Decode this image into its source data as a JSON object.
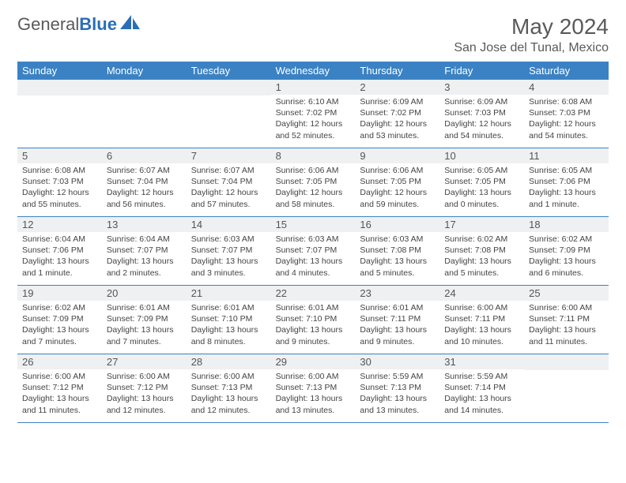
{
  "brand": {
    "word1": "General",
    "word2": "Blue"
  },
  "title": "May 2024",
  "location": "San Jose del Tunal, Mexico",
  "colors": {
    "header_bg": "#3b82c4",
    "header_text": "#ffffff",
    "daynum_bg": "#eef0f2",
    "border": "#3b82c4",
    "body_text": "#444444",
    "title_text": "#5a5a5a"
  },
  "day_names": [
    "Sunday",
    "Monday",
    "Tuesday",
    "Wednesday",
    "Thursday",
    "Friday",
    "Saturday"
  ],
  "weeks": [
    [
      {
        "n": "",
        "sr": "",
        "ss": "",
        "dl": ""
      },
      {
        "n": "",
        "sr": "",
        "ss": "",
        "dl": ""
      },
      {
        "n": "",
        "sr": "",
        "ss": "",
        "dl": ""
      },
      {
        "n": "1",
        "sr": "Sunrise: 6:10 AM",
        "ss": "Sunset: 7:02 PM",
        "dl": "Daylight: 12 hours and 52 minutes."
      },
      {
        "n": "2",
        "sr": "Sunrise: 6:09 AM",
        "ss": "Sunset: 7:02 PM",
        "dl": "Daylight: 12 hours and 53 minutes."
      },
      {
        "n": "3",
        "sr": "Sunrise: 6:09 AM",
        "ss": "Sunset: 7:03 PM",
        "dl": "Daylight: 12 hours and 54 minutes."
      },
      {
        "n": "4",
        "sr": "Sunrise: 6:08 AM",
        "ss": "Sunset: 7:03 PM",
        "dl": "Daylight: 12 hours and 54 minutes."
      }
    ],
    [
      {
        "n": "5",
        "sr": "Sunrise: 6:08 AM",
        "ss": "Sunset: 7:03 PM",
        "dl": "Daylight: 12 hours and 55 minutes."
      },
      {
        "n": "6",
        "sr": "Sunrise: 6:07 AM",
        "ss": "Sunset: 7:04 PM",
        "dl": "Daylight: 12 hours and 56 minutes."
      },
      {
        "n": "7",
        "sr": "Sunrise: 6:07 AM",
        "ss": "Sunset: 7:04 PM",
        "dl": "Daylight: 12 hours and 57 minutes."
      },
      {
        "n": "8",
        "sr": "Sunrise: 6:06 AM",
        "ss": "Sunset: 7:05 PM",
        "dl": "Daylight: 12 hours and 58 minutes."
      },
      {
        "n": "9",
        "sr": "Sunrise: 6:06 AM",
        "ss": "Sunset: 7:05 PM",
        "dl": "Daylight: 12 hours and 59 minutes."
      },
      {
        "n": "10",
        "sr": "Sunrise: 6:05 AM",
        "ss": "Sunset: 7:05 PM",
        "dl": "Daylight: 13 hours and 0 minutes."
      },
      {
        "n": "11",
        "sr": "Sunrise: 6:05 AM",
        "ss": "Sunset: 7:06 PM",
        "dl": "Daylight: 13 hours and 1 minute."
      }
    ],
    [
      {
        "n": "12",
        "sr": "Sunrise: 6:04 AM",
        "ss": "Sunset: 7:06 PM",
        "dl": "Daylight: 13 hours and 1 minute."
      },
      {
        "n": "13",
        "sr": "Sunrise: 6:04 AM",
        "ss": "Sunset: 7:07 PM",
        "dl": "Daylight: 13 hours and 2 minutes."
      },
      {
        "n": "14",
        "sr": "Sunrise: 6:03 AM",
        "ss": "Sunset: 7:07 PM",
        "dl": "Daylight: 13 hours and 3 minutes."
      },
      {
        "n": "15",
        "sr": "Sunrise: 6:03 AM",
        "ss": "Sunset: 7:07 PM",
        "dl": "Daylight: 13 hours and 4 minutes."
      },
      {
        "n": "16",
        "sr": "Sunrise: 6:03 AM",
        "ss": "Sunset: 7:08 PM",
        "dl": "Daylight: 13 hours and 5 minutes."
      },
      {
        "n": "17",
        "sr": "Sunrise: 6:02 AM",
        "ss": "Sunset: 7:08 PM",
        "dl": "Daylight: 13 hours and 5 minutes."
      },
      {
        "n": "18",
        "sr": "Sunrise: 6:02 AM",
        "ss": "Sunset: 7:09 PM",
        "dl": "Daylight: 13 hours and 6 minutes."
      }
    ],
    [
      {
        "n": "19",
        "sr": "Sunrise: 6:02 AM",
        "ss": "Sunset: 7:09 PM",
        "dl": "Daylight: 13 hours and 7 minutes."
      },
      {
        "n": "20",
        "sr": "Sunrise: 6:01 AM",
        "ss": "Sunset: 7:09 PM",
        "dl": "Daylight: 13 hours and 7 minutes."
      },
      {
        "n": "21",
        "sr": "Sunrise: 6:01 AM",
        "ss": "Sunset: 7:10 PM",
        "dl": "Daylight: 13 hours and 8 minutes."
      },
      {
        "n": "22",
        "sr": "Sunrise: 6:01 AM",
        "ss": "Sunset: 7:10 PM",
        "dl": "Daylight: 13 hours and 9 minutes."
      },
      {
        "n": "23",
        "sr": "Sunrise: 6:01 AM",
        "ss": "Sunset: 7:11 PM",
        "dl": "Daylight: 13 hours and 9 minutes."
      },
      {
        "n": "24",
        "sr": "Sunrise: 6:00 AM",
        "ss": "Sunset: 7:11 PM",
        "dl": "Daylight: 13 hours and 10 minutes."
      },
      {
        "n": "25",
        "sr": "Sunrise: 6:00 AM",
        "ss": "Sunset: 7:11 PM",
        "dl": "Daylight: 13 hours and 11 minutes."
      }
    ],
    [
      {
        "n": "26",
        "sr": "Sunrise: 6:00 AM",
        "ss": "Sunset: 7:12 PM",
        "dl": "Daylight: 13 hours and 11 minutes."
      },
      {
        "n": "27",
        "sr": "Sunrise: 6:00 AM",
        "ss": "Sunset: 7:12 PM",
        "dl": "Daylight: 13 hours and 12 minutes."
      },
      {
        "n": "28",
        "sr": "Sunrise: 6:00 AM",
        "ss": "Sunset: 7:13 PM",
        "dl": "Daylight: 13 hours and 12 minutes."
      },
      {
        "n": "29",
        "sr": "Sunrise: 6:00 AM",
        "ss": "Sunset: 7:13 PM",
        "dl": "Daylight: 13 hours and 13 minutes."
      },
      {
        "n": "30",
        "sr": "Sunrise: 5:59 AM",
        "ss": "Sunset: 7:13 PM",
        "dl": "Daylight: 13 hours and 13 minutes."
      },
      {
        "n": "31",
        "sr": "Sunrise: 5:59 AM",
        "ss": "Sunset: 7:14 PM",
        "dl": "Daylight: 13 hours and 14 minutes."
      },
      {
        "n": "",
        "sr": "",
        "ss": "",
        "dl": ""
      }
    ]
  ]
}
